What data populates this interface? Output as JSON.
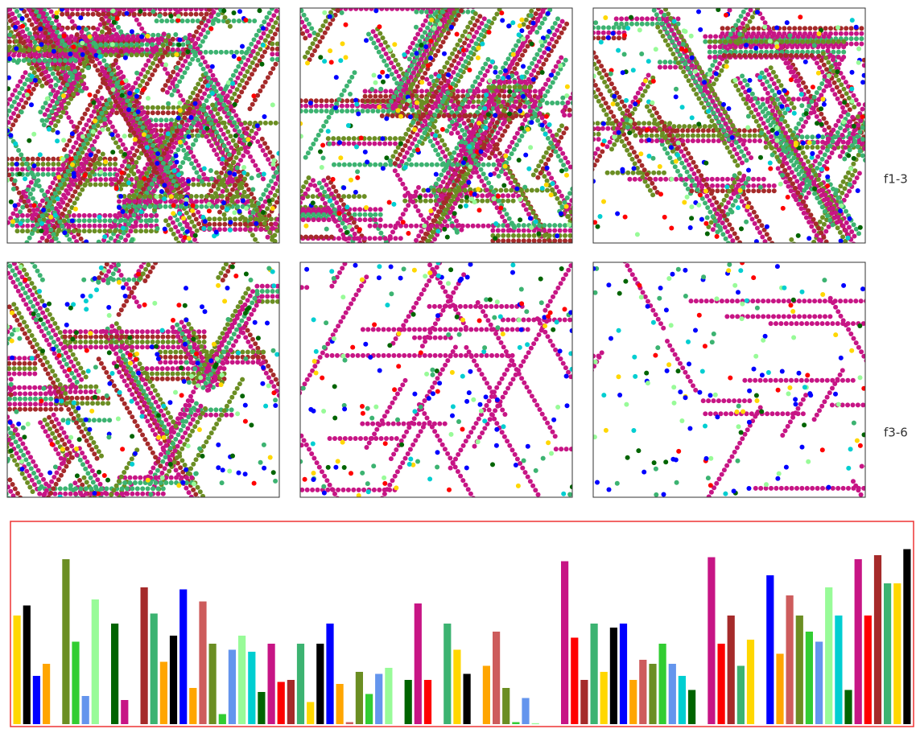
{
  "labels": {
    "row1": "f1-3",
    "row2": "f3-6"
  },
  "chart_data": {
    "type": "bar",
    "ylim": [
      0,
      100
    ],
    "values": [
      54,
      59,
      24,
      30,
      null,
      82,
      41,
      14,
      62,
      null,
      50,
      12,
      null,
      68,
      55,
      31,
      44,
      67,
      18,
      61,
      40,
      5,
      37,
      44,
      36,
      16,
      40,
      21,
      22,
      40,
      11,
      40,
      50,
      20,
      1,
      26,
      15,
      25,
      28,
      null,
      22,
      60,
      22,
      null,
      50,
      37,
      25,
      null,
      29,
      46,
      18,
      1,
      13,
      0.5,
      null,
      null,
      81,
      43,
      22,
      50,
      26,
      48,
      50,
      22,
      32,
      30,
      40,
      30,
      24,
      17,
      null,
      83,
      40,
      54,
      29,
      42,
      null,
      74,
      35,
      64,
      54,
      46,
      41,
      68,
      54,
      17,
      82,
      54,
      84,
      70,
      70,
      87
    ],
    "colors": [
      "gold",
      "black",
      "blue",
      "orange",
      null,
      "olivedrab",
      "limegreen",
      "cornflowerblue",
      "palegreen",
      null,
      "darkgreen",
      "mediumvioletred",
      null,
      "brown",
      "mediumseagreen",
      "orange",
      "black",
      "blue",
      "orange",
      "indianred",
      "olivedrab",
      "limegreen",
      "cornflowerblue",
      "palegreen",
      "darkturquoise",
      "darkgreen",
      "mediumvioletred",
      "red",
      "brown",
      "mediumseagreen",
      "gold",
      "black",
      "blue",
      "orange",
      "indianred",
      "olivedrab",
      "limegreen",
      "cornflowerblue",
      "palegreen",
      null,
      "darkgreen",
      "mediumvioletred",
      "red",
      null,
      "mediumseagreen",
      "gold",
      "black",
      null,
      "orange",
      "indianred",
      "olivedrab",
      "limegreen",
      "cornflowerblue",
      "palegreen",
      null,
      null,
      "mediumvioletred",
      "red",
      "brown",
      "mediumseagreen",
      "gold",
      "black",
      "blue",
      "orange",
      "indianred",
      "olivedrab",
      "limegreen",
      "cornflowerblue",
      "darkturquoise",
      "darkgreen",
      null,
      "mediumvioletred",
      "red",
      "brown",
      "mediumseagreen",
      "gold",
      null,
      "blue",
      "orange",
      "indianred",
      "olivedrab",
      "limegreen",
      "cornflowerblue",
      "palegreen",
      "darkturquoise",
      "darkgreen",
      "mediumvioletred",
      "red",
      "brown",
      "mediumseagreen",
      "gold",
      "black"
    ]
  }
}
